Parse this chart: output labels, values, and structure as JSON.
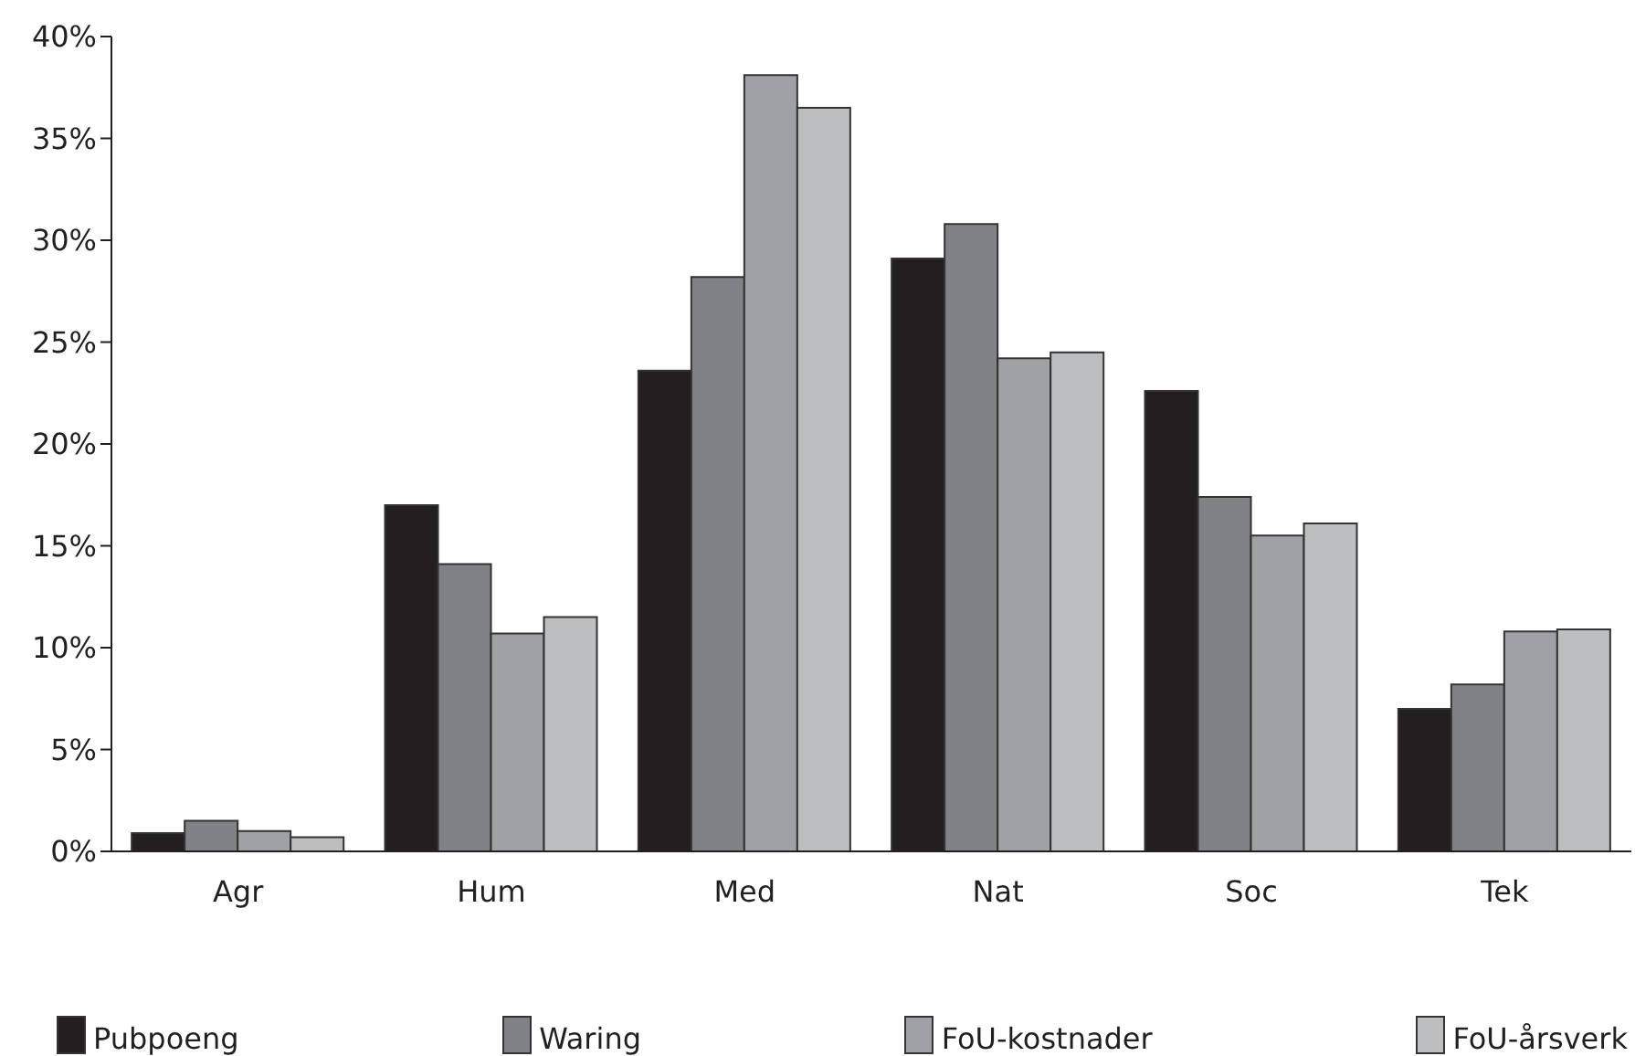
{
  "chart_data": {
    "type": "bar",
    "categories": [
      "Agr",
      "Hum",
      "Med",
      "Nat",
      "Soc",
      "Tek"
    ],
    "series": [
      {
        "name": "Pubpoeng",
        "color": "#231f20",
        "values": [
          0.9,
          17.0,
          23.6,
          29.1,
          22.6,
          7.0
        ]
      },
      {
        "name": "Waring",
        "color": "#808285",
        "values": [
          1.5,
          14.1,
          28.2,
          30.8,
          17.4,
          8.2
        ]
      },
      {
        "name": "FoU-kostnader",
        "color": "#a0a1a5",
        "values": [
          1.0,
          10.7,
          38.1,
          24.2,
          15.5,
          10.8
        ]
      },
      {
        "name": "FoU-årsverk",
        "color": "#bcbec0",
        "values": [
          0.7,
          11.5,
          36.5,
          24.5,
          16.1,
          10.9
        ]
      }
    ],
    "ylim": [
      0,
      40
    ],
    "yticks": [
      {
        "value": 0,
        "label": "0%"
      },
      {
        "value": 5,
        "label": "5%"
      },
      {
        "value": 10,
        "label": "10%"
      },
      {
        "value": 15,
        "label": "15%"
      },
      {
        "value": 20,
        "label": "20%"
      },
      {
        "value": 25,
        "label": "25%"
      },
      {
        "value": 30,
        "label": "30%"
      },
      {
        "value": 35,
        "label": "35%"
      },
      {
        "value": 40,
        "label": "40%"
      }
    ],
    "grid": false,
    "legend": "bottom"
  }
}
